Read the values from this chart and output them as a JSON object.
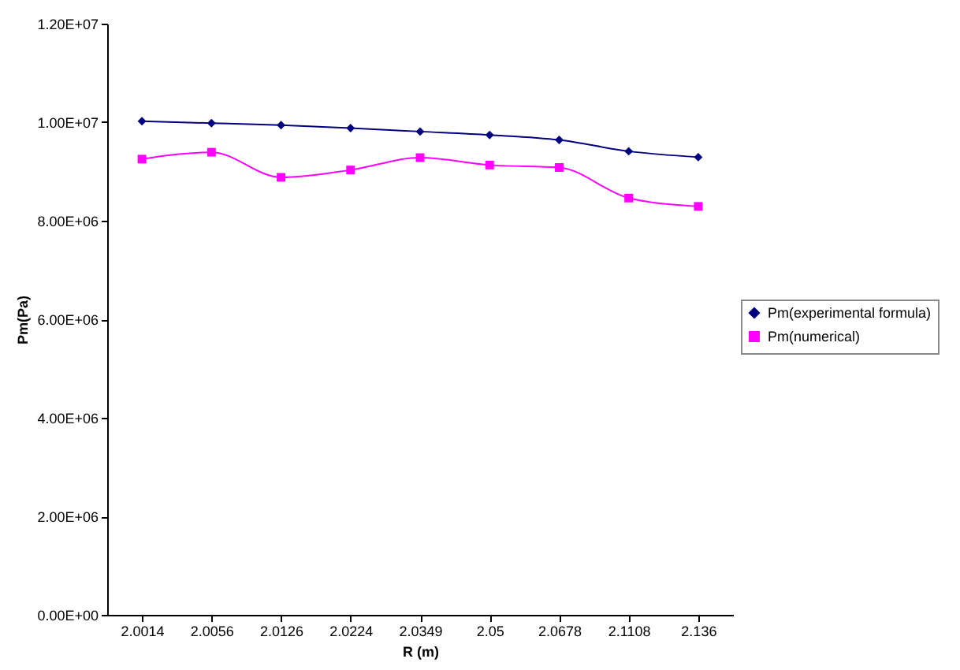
{
  "chart_data": {
    "type": "line",
    "xlabel": "R (m)",
    "ylabel": "Pm(Pa)",
    "categories": [
      "2.0014",
      "2.0056",
      "2.0126",
      "2.0224",
      "2.0349",
      "2.05",
      "2.0678",
      "2.1108",
      "2.136"
    ],
    "series": [
      {
        "name": "Pm(experimental formula)",
        "color": "#000080",
        "marker": "diamond",
        "values": [
          10020000,
          9980000,
          9940000,
          9880000,
          9810000,
          9740000,
          9640000,
          9410000,
          9290000
        ]
      },
      {
        "name": "Pm(numerical)",
        "color": "#ff00ff",
        "marker": "square",
        "values": [
          9250000,
          9390000,
          8880000,
          9030000,
          9280000,
          9130000,
          9080000,
          8460000,
          8290000
        ]
      }
    ],
    "ylim": [
      0,
      12000000
    ],
    "yticks": [
      {
        "value": 0,
        "label": "0.00E+00"
      },
      {
        "value": 2000000,
        "label": "2.00E+06"
      },
      {
        "value": 4000000,
        "label": "4.00E+06"
      },
      {
        "value": 6000000,
        "label": "6.00E+06"
      },
      {
        "value": 8000000,
        "label": "8.00E+06"
      },
      {
        "value": 10000000,
        "label": "1.00E+07"
      },
      {
        "value": 12000000,
        "label": "1.20E+07"
      }
    ],
    "grid": false,
    "legend": "right",
    "line_style": "solid"
  }
}
